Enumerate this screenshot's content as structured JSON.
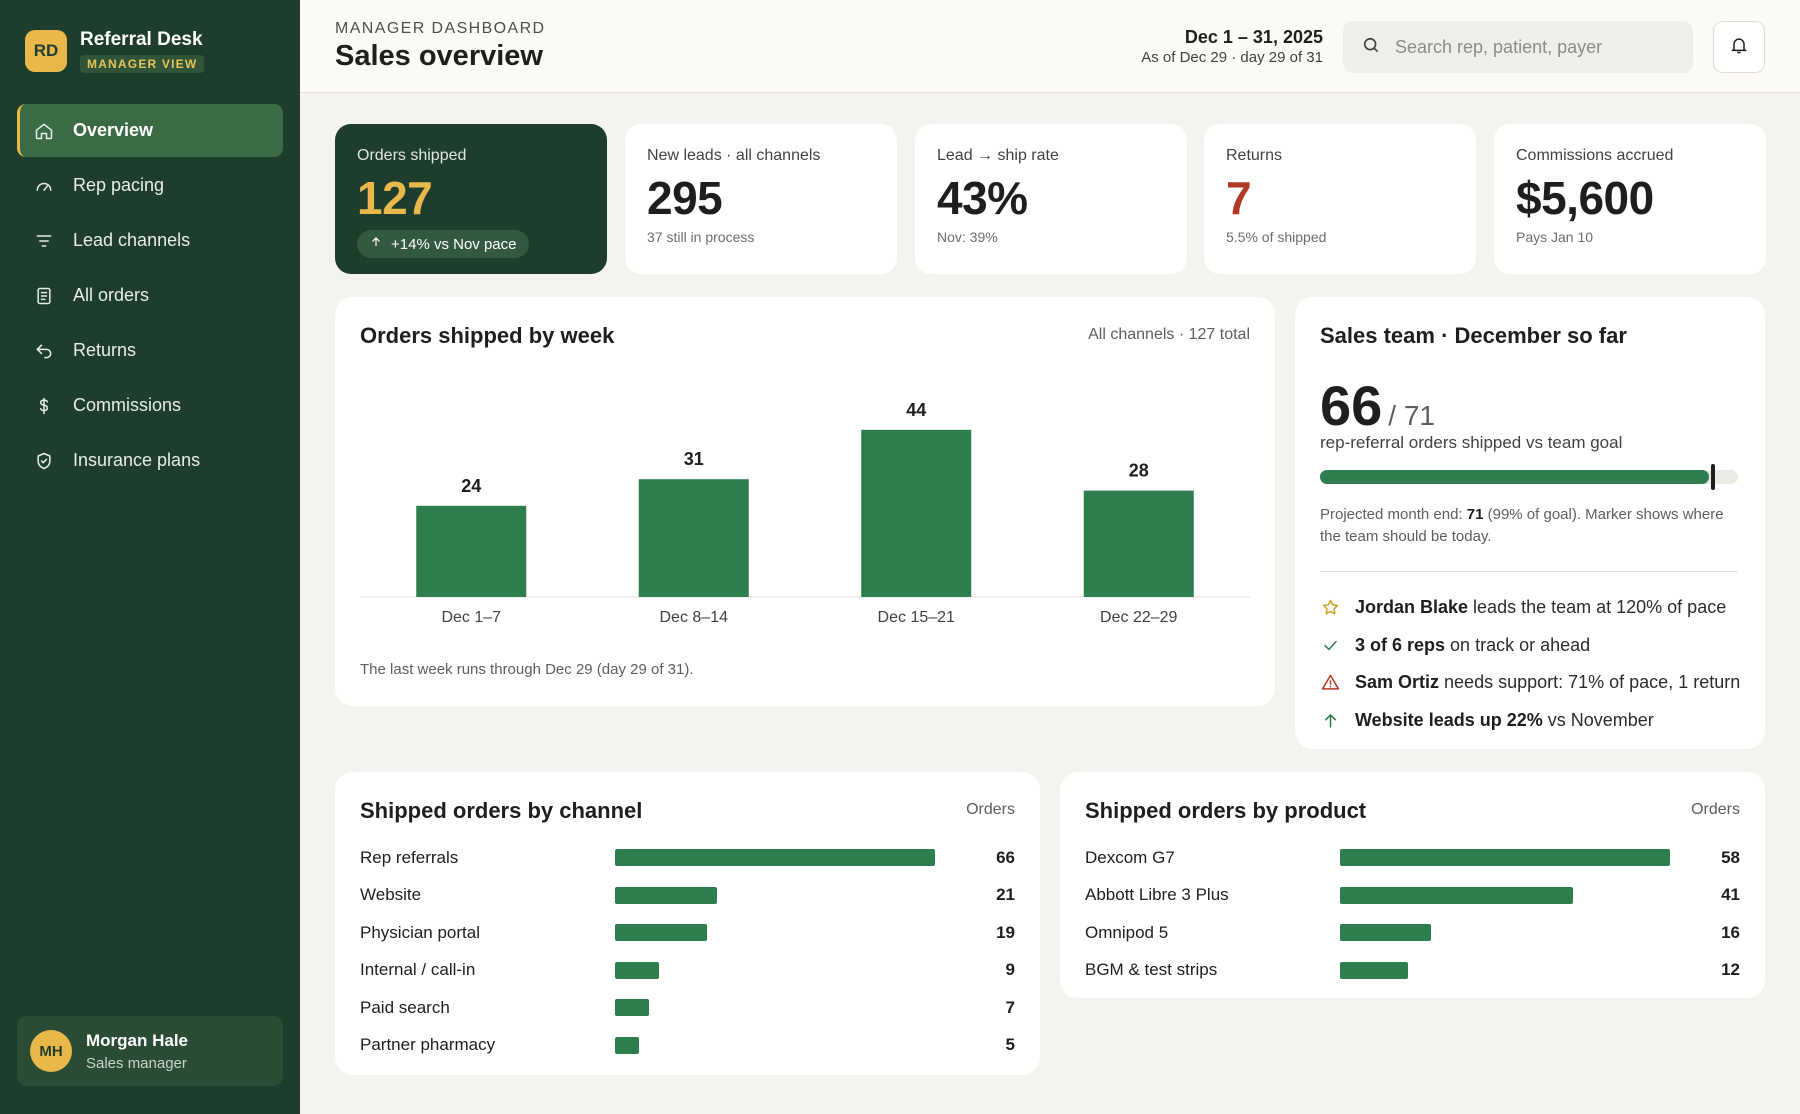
{
  "brand": {
    "logo": "RD",
    "name": "Referral Desk",
    "badge": "MANAGER VIEW"
  },
  "nav": [
    {
      "label": "Overview",
      "icon": "home-icon",
      "active": true
    },
    {
      "label": "Rep pacing",
      "icon": "gauge-icon",
      "active": false
    },
    {
      "label": "Lead channels",
      "icon": "filter-icon",
      "active": false
    },
    {
      "label": "All orders",
      "icon": "document-icon",
      "active": false
    },
    {
      "label": "Returns",
      "icon": "return-arrow-icon",
      "active": false
    },
    {
      "label": "Commissions",
      "icon": "dollar-icon",
      "active": false
    },
    {
      "label": "Insurance plans",
      "icon": "shield-check-icon",
      "active": false
    }
  ],
  "user": {
    "initials": "MH",
    "name": "Morgan Hale",
    "role": "Sales manager"
  },
  "header": {
    "eyebrow": "MANAGER DASHBOARD",
    "title": "Sales overview",
    "date_range": "Dec 1 – 31, 2025",
    "date_sub": "As of Dec 29 · day 29 of 31",
    "search_placeholder": "Search rep, patient, payer"
  },
  "kpis": [
    {
      "label": "Orders shipped",
      "value": "127",
      "delta": "+14% vs Nov pace"
    },
    {
      "label": "New leads · all channels",
      "value": "295",
      "sub": "37 still in process"
    },
    {
      "label": "Lead → ship rate",
      "value": "43%",
      "sub": "Nov: 39%"
    },
    {
      "label": "Returns",
      "value": "7",
      "sub": "5.5% of shipped"
    },
    {
      "label": "Commissions accrued",
      "value": "$5,600",
      "sub": "Pays Jan 10"
    }
  ],
  "weekly": {
    "title": "Orders shipped by week",
    "meta": "All channels · 127 total",
    "note": "The last week runs through Dec 29 (day 29 of 31).",
    "chart_data": {
      "type": "bar",
      "categories": [
        "Dec 1–7",
        "Dec 8–14",
        "Dec 15–21",
        "Dec 22–29"
      ],
      "values": [
        24,
        31,
        44,
        28
      ],
      "title": "Orders shipped by week",
      "xlabel": "",
      "ylabel": "",
      "ylim": [
        0,
        50
      ],
      "grid": false,
      "bar_color": "#2e7d4f"
    }
  },
  "team": {
    "title": "Sales team · December so far",
    "shipped": "66",
    "goal": "/ 71",
    "caption": "rep-referral orders shipped vs team goal",
    "progress_fraction": 0.93,
    "marker_fraction": 0.935,
    "proj_prefix": "Projected month end: ",
    "proj_value": "71",
    "proj_suffix": " (99% of goal). Marker shows where the team should be today.",
    "insights": [
      {
        "icon": "star-icon",
        "color": "#c9a227",
        "strong": "Jordan Blake",
        "text": "leads the team at 120% of pace"
      },
      {
        "icon": "check-icon",
        "color": "#2e7d4f",
        "strong": "3 of 6 reps",
        "text": "on track or ahead"
      },
      {
        "icon": "warning-icon",
        "color": "#b23a24",
        "strong": "Sam Ortiz",
        "text": "needs support: 71% of pace, 1 return"
      },
      {
        "icon": "arrow-up-icon",
        "color": "#2e7d4f",
        "strong": "Website leads up 22%",
        "text": "vs November"
      }
    ]
  },
  "channels": {
    "title": "Shipped orders by channel",
    "meta": "Orders",
    "chart_data": {
      "type": "bar",
      "orientation": "horizontal",
      "categories": [
        "Rep referrals",
        "Website",
        "Physician portal",
        "Internal / call-in",
        "Paid search",
        "Partner pharmacy"
      ],
      "values": [
        66,
        21,
        19,
        9,
        7,
        5
      ],
      "xlim": [
        0,
        66
      ]
    }
  },
  "products": {
    "title": "Shipped orders by product",
    "meta": "Orders",
    "chart_data": {
      "type": "bar",
      "orientation": "horizontal",
      "categories": [
        "Dexcom G7",
        "Abbott Libre 3 Plus",
        "Omnipod 5",
        "BGM & test strips"
      ],
      "values": [
        58,
        41,
        16,
        12
      ],
      "xlim": [
        0,
        58
      ]
    }
  }
}
